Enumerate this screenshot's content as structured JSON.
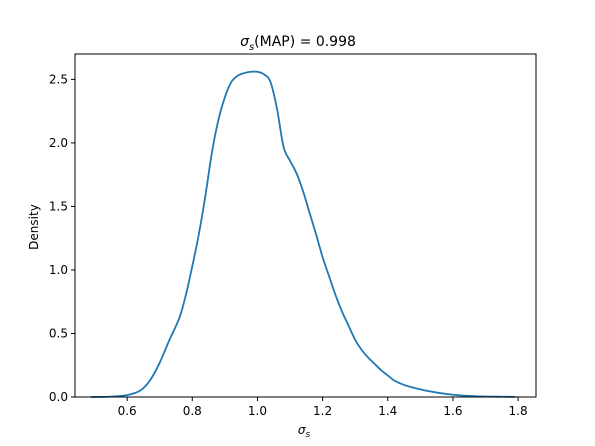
{
  "chart_data": {
    "type": "line",
    "title": "σs(MAP) = 0.998",
    "title_symbol": "σ",
    "title_subscript": "s",
    "title_rest": "(MAP) = 0.998",
    "xlabel": "σs",
    "xlabel_symbol": "σ",
    "xlabel_subscript": "s",
    "ylabel": "Density",
    "xlim": [
      0.44,
      1.855
    ],
    "ylim": [
      0,
      2.7
    ],
    "xticks": [
      0.6,
      0.8,
      1.0,
      1.2,
      1.4,
      1.6,
      1.8
    ],
    "xtick_labels": [
      "0.6",
      "0.8",
      "1.0",
      "1.2",
      "1.4",
      "1.6",
      "1.8"
    ],
    "yticks": [
      0.0,
      0.5,
      1.0,
      1.5,
      2.0,
      2.5
    ],
    "ytick_labels": [
      "0.0",
      "0.5",
      "1.0",
      "1.5",
      "2.0",
      "2.5"
    ],
    "grid": false,
    "series": [
      {
        "color": "#1f77b4",
        "x": [
          0.49,
          0.55,
          0.6,
          0.64,
          0.67,
          0.7,
          0.73,
          0.76,
          0.78,
          0.8,
          0.82,
          0.84,
          0.86,
          0.88,
          0.9,
          0.92,
          0.94,
          0.96,
          0.98,
          1.0,
          1.02,
          1.04,
          1.06,
          1.08,
          1.1,
          1.12,
          1.14,
          1.16,
          1.18,
          1.2,
          1.22,
          1.24,
          1.26,
          1.28,
          1.3,
          1.32,
          1.34,
          1.36,
          1.38,
          1.4,
          1.42,
          1.45,
          1.5,
          1.55,
          1.6,
          1.65,
          1.7,
          1.75,
          1.79
        ],
        "y": [
          0.0,
          0.003,
          0.015,
          0.05,
          0.13,
          0.27,
          0.45,
          0.62,
          0.8,
          1.03,
          1.28,
          1.58,
          1.92,
          2.18,
          2.36,
          2.48,
          2.53,
          2.55,
          2.56,
          2.56,
          2.54,
          2.48,
          2.27,
          1.97,
          1.86,
          1.76,
          1.62,
          1.45,
          1.28,
          1.1,
          0.95,
          0.8,
          0.67,
          0.56,
          0.45,
          0.37,
          0.31,
          0.26,
          0.21,
          0.17,
          0.13,
          0.095,
          0.06,
          0.035,
          0.018,
          0.009,
          0.004,
          0.002,
          0.001
        ]
      }
    ]
  }
}
